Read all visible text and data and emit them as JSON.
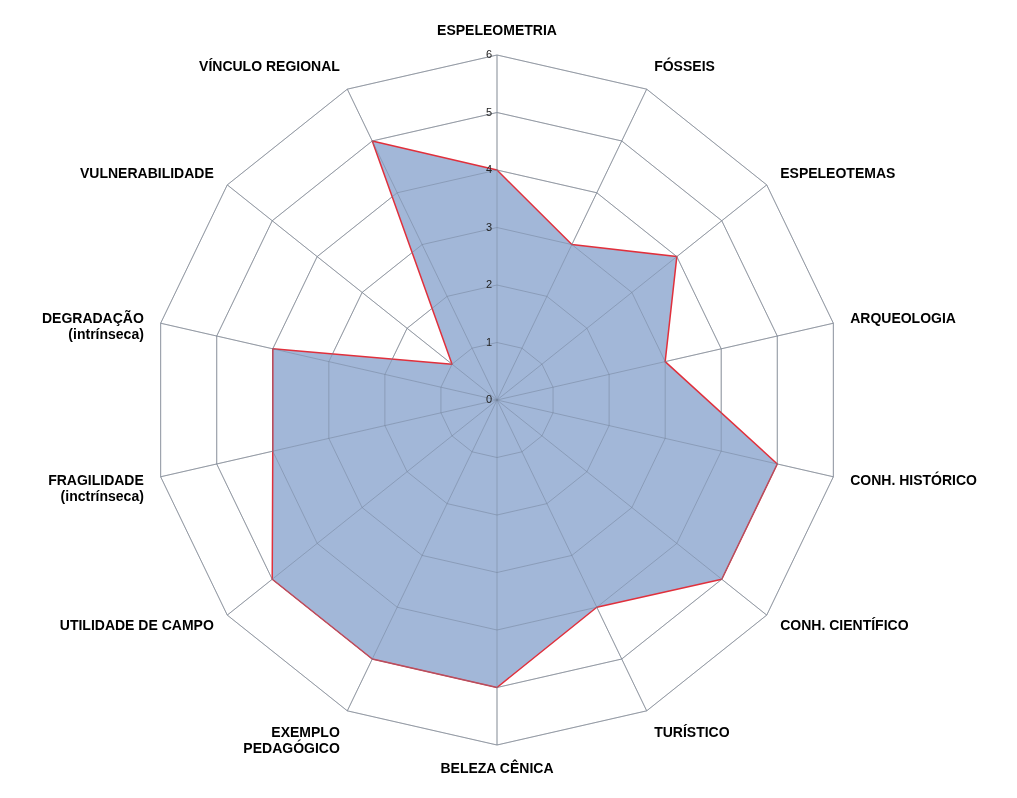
{
  "chart_data": {
    "type": "radar",
    "categories": [
      "ESPELEOMETRIA",
      "FÓSSEIS",
      "ESPELEOTEMAS",
      "ARQUEOLOGIA",
      "CONH. HISTÓRICO",
      "CONH. CIENTÍFICO",
      "TURÍSTICO",
      "BELEZA CÊNICA",
      "EXEMPLO\nPEDAGÓGICO",
      "UTILIDADE DE CAMPO",
      "FRAGILIDADE\n(inctrínseca)",
      "DEGRADAÇÃO\n(intrínseca)",
      "VULNERABILIDADE",
      "VÍNCULO REGIONAL"
    ],
    "series": [
      {
        "color": "#a2b7d8",
        "values": [
          4,
          3,
          4,
          3,
          5,
          5,
          4,
          5,
          5,
          5,
          4,
          4,
          1,
          5
        ]
      }
    ],
    "ylim": [
      0,
      6
    ],
    "yticks": [
      0,
      1,
      2,
      3,
      4,
      5,
      6
    ],
    "grid": true
  }
}
